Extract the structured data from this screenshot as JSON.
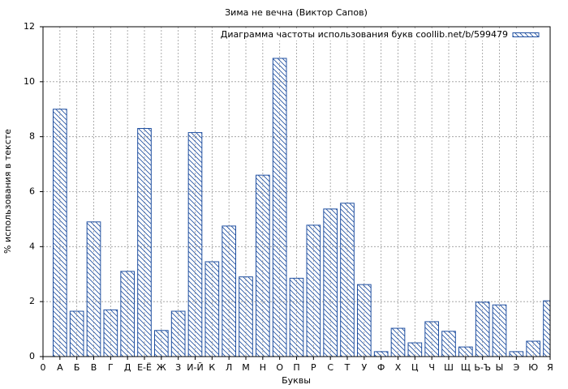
{
  "chart_data": {
    "type": "bar",
    "title": "Зима не вечна (Виктор Сапов)",
    "xlabel": "Буквы",
    "ylabel": "% использования в тексте",
    "x": [
      1,
      2,
      3,
      4,
      5,
      6,
      7,
      8,
      9,
      10,
      11,
      12,
      13,
      14,
      15,
      16,
      17,
      18,
      19,
      20,
      21,
      22,
      23,
      24,
      25,
      26,
      27,
      28,
      29,
      30
    ],
    "series": [
      {
        "name": "Диаграмма частоты использования букв coollib.net/b/599479",
        "color": "#1f4fa0",
        "values": [
          9.0,
          1.65,
          4.9,
          1.7,
          3.1,
          8.3,
          0.95,
          1.65,
          8.15,
          3.45,
          4.75,
          2.9,
          6.6,
          10.85,
          2.85,
          4.78,
          5.37,
          5.58,
          2.62,
          0.18,
          1.03,
          0.5,
          1.27,
          0.92,
          0.35,
          1.98,
          1.88,
          0.18,
          0.56,
          2.03
        ]
      }
    ],
    "xlim": [
      0,
      30
    ],
    "xticks": [
      0,
      {
        "value": 1,
        "label": "А"
      },
      {
        "value": 2,
        "label": "Б"
      },
      {
        "value": 3,
        "label": "В"
      },
      {
        "value": 4,
        "label": "Г"
      },
      {
        "value": 5,
        "label": "Д"
      },
      {
        "value": 6,
        "label": "Е-Ё"
      },
      {
        "value": 7,
        "label": "Ж"
      },
      {
        "value": 8,
        "label": "З"
      },
      {
        "value": 9,
        "label": "И-Й"
      },
      {
        "value": 10,
        "label": "К"
      },
      {
        "value": 11,
        "label": "Л"
      },
      {
        "value": 12,
        "label": "М"
      },
      {
        "value": 13,
        "label": "Н"
      },
      {
        "value": 14,
        "label": "О"
      },
      {
        "value": 15,
        "label": "П"
      },
      {
        "value": 16,
        "label": "Р"
      },
      {
        "value": 17,
        "label": "С"
      },
      {
        "value": 18,
        "label": "Т"
      },
      {
        "value": 19,
        "label": "У"
      },
      {
        "value": 20,
        "label": "Ф"
      },
      {
        "value": 21,
        "label": "Х"
      },
      {
        "value": 22,
        "label": "Ц"
      },
      {
        "value": 23,
        "label": "Ч"
      },
      {
        "value": 24,
        "label": "Ш"
      },
      {
        "value": 25,
        "label": "Щ"
      },
      {
        "value": 26,
        "label": "Ь-Ъ"
      },
      {
        "value": 27,
        "label": "Ы"
      },
      {
        "value": 28,
        "label": "Э"
      },
      {
        "value": 29,
        "label": "Ю"
      },
      {
        "value": 30,
        "label": "Я"
      }
    ],
    "ylim": [
      0,
      12
    ],
    "yticks": [
      0,
      2,
      4,
      6,
      8,
      10,
      12
    ],
    "grid": true,
    "legend": "upper right"
  }
}
